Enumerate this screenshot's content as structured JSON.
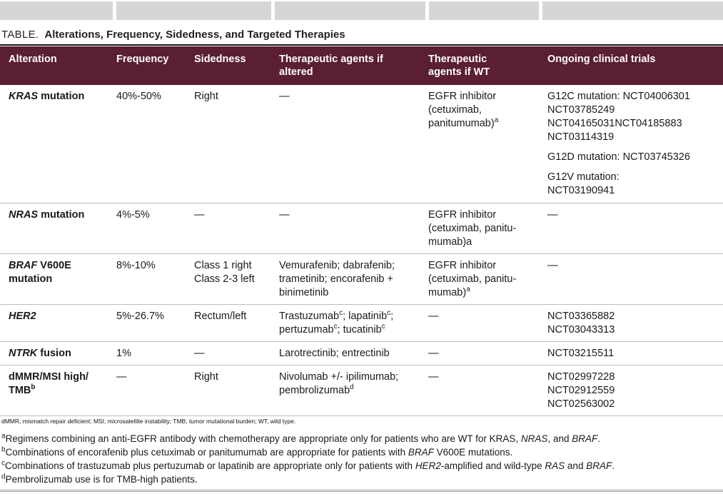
{
  "page": {
    "header_bg": "#5a1f31",
    "row_border_color": "#bdbdbd",
    "crop_bar_color": "#d6d6d6"
  },
  "title": {
    "prefix": "TABLE.",
    "text": "Alterations, Frequency, Sidedness, and Targeted Therapies"
  },
  "table": {
    "columns": [
      "Alteration",
      "Frequency",
      "Sidedness",
      "Therapeutic agents if\naltered",
      "Therapeutic\nagents if WT",
      "Ongoing clinical trials"
    ],
    "rows": [
      {
        "min_height": 166,
        "cells": [
          "*KRAS* mutation",
          "40%-50%",
          "Right",
          "—",
          "EGFR inhibitor\n(cetuximab,\npanitumumab)^a^",
          "G12C mutation: NCT04006301\nNCT03785249\nNCT04165031NCT04185883\nNCT03114319\n\nG12D mutation: NCT03745326\n\nG12V mutation:\nNCT03190941"
        ]
      },
      {
        "min_height": 70,
        "cells": [
          "*NRAS* mutation",
          "4%-5%",
          "—",
          "—",
          "EGFR inhibitor\n(cetuximab, panitu-\nmumab)a",
          "—"
        ]
      },
      {
        "min_height": 68,
        "cells": [
          "*BRAF* V600E\nmutation",
          "8%-10%",
          "Class 1 right\nClass 2-3 left",
          "Vemurafenib; dabrafenib;\ntrametinib; encorafenib +\nbinimetinib",
          "EGFR inhibitor\n(cetuximab, panitu-\nmumab)^a^",
          "—"
        ]
      },
      {
        "min_height": 50,
        "cells": [
          "*HER2*",
          "5%-26.7%",
          "Rectum/left",
          "Trastuzumab^c^; lapatinib^c^;\npertuzumab^c^; tucatinib^c^",
          "—",
          "NCT03365882\nNCT03043313"
        ]
      },
      {
        "min_height": 31,
        "cells": [
          "*NTRK* fusion",
          "1%",
          "—",
          "Larotrectinib; entrectinib",
          "—",
          "NCT03215511"
        ]
      },
      {
        "min_height": 70,
        "cells": [
          "dMMR/MSI high/\nTMB^b^",
          "—",
          "Right",
          "Nivolumab +/- ipilimumab;\npembrolizumab^d^",
          "—",
          "NCT02997228\nNCT02912559\nNCT02563002"
        ]
      }
    ]
  },
  "footnotes": {
    "abbreviations": "dMMR, mismatch repair deficient; MSI, microsatellite instability; TMB, tumor mutational burden; WT, wild type.",
    "items": [
      "^a^Regimens combining an anti-EGFR antibody with chemotherapy are appropriate only for patients who are WT for KRAS, *NRAS*, and *BRAF*.",
      "^b^Combinations of encorafenib plus cetuximab or panitumumab are appropriate for patients with *BRAF* V600E mutations.",
      "^c^Combinations of trastuzumab plus pertuzumab or lapatinib are appropriate only for patients with *HER2*-amplified and wild-type *RAS* and *BRAF*.",
      "^d^Pembrolizumab use is for TMB-high patients."
    ]
  }
}
